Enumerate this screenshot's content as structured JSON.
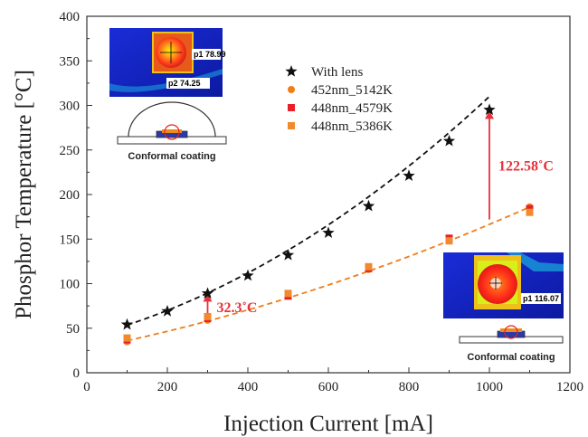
{
  "chart_data": {
    "type": "scatter",
    "xlabel": "Injection Current [mA]",
    "ylabel": "Phosphor Temperature  [°C]",
    "xlim": [
      0,
      1200
    ],
    "ylim": [
      0,
      400
    ],
    "xticks": [
      0,
      200,
      400,
      600,
      800,
      1000,
      1200
    ],
    "yticks": [
      0,
      50,
      100,
      150,
      200,
      250,
      300,
      350,
      400
    ],
    "grid": false,
    "legend_position": "top-center",
    "series": [
      {
        "name": "With lens",
        "marker": "star",
        "color": "#111111",
        "x": [
          100,
          200,
          300,
          400,
          500,
          600,
          700,
          800,
          900,
          1000
        ],
        "y": [
          54,
          69,
          89,
          109,
          132,
          157,
          187,
          221,
          260,
          295
        ]
      },
      {
        "name": "452nm_5142K",
        "marker": "circle",
        "color": "#f07d1a",
        "x": [
          100,
          300,
          500,
          700,
          900,
          1100
        ],
        "y": [
          35,
          59,
          87,
          116,
          149,
          186
        ]
      },
      {
        "name": "448nm_4579K",
        "marker": "square",
        "color": "#e8202a",
        "x": [
          100,
          300,
          500,
          700,
          900,
          1100
        ],
        "y": [
          37,
          61,
          86,
          117,
          151,
          184
        ]
      },
      {
        "name": "448nm_5386K",
        "marker": "square",
        "color": "#f08a2c",
        "x": [
          100,
          300,
          500,
          700,
          900,
          1100
        ],
        "y": [
          39,
          63,
          89,
          119,
          148,
          180
        ]
      }
    ],
    "fits": [
      {
        "color": "#111111",
        "x": [
          100,
          1000
        ],
        "coef": [
          0.00015,
          0.12,
          40
        ]
      },
      {
        "color": "#f07d1a",
        "x": [
          100,
          1100
        ],
        "coef": [
          5e-05,
          0.09,
          26.5
        ]
      }
    ],
    "annotations": [
      {
        "text": "32.3˚C",
        "x": 300,
        "y_from": 59,
        "y_to": 89,
        "color": "#e8313a"
      },
      {
        "text": "122.58˚C",
        "x": 1000,
        "y_from": 172,
        "y_to": 294,
        "color": "#e8313a"
      }
    ],
    "insets": [
      {
        "caption": "Conformal coating",
        "labels": [
          "p1  78.99",
          "p2  74.25"
        ]
      },
      {
        "caption": "Conformal coating",
        "labels": [
          "p1  116.07"
        ]
      }
    ]
  }
}
